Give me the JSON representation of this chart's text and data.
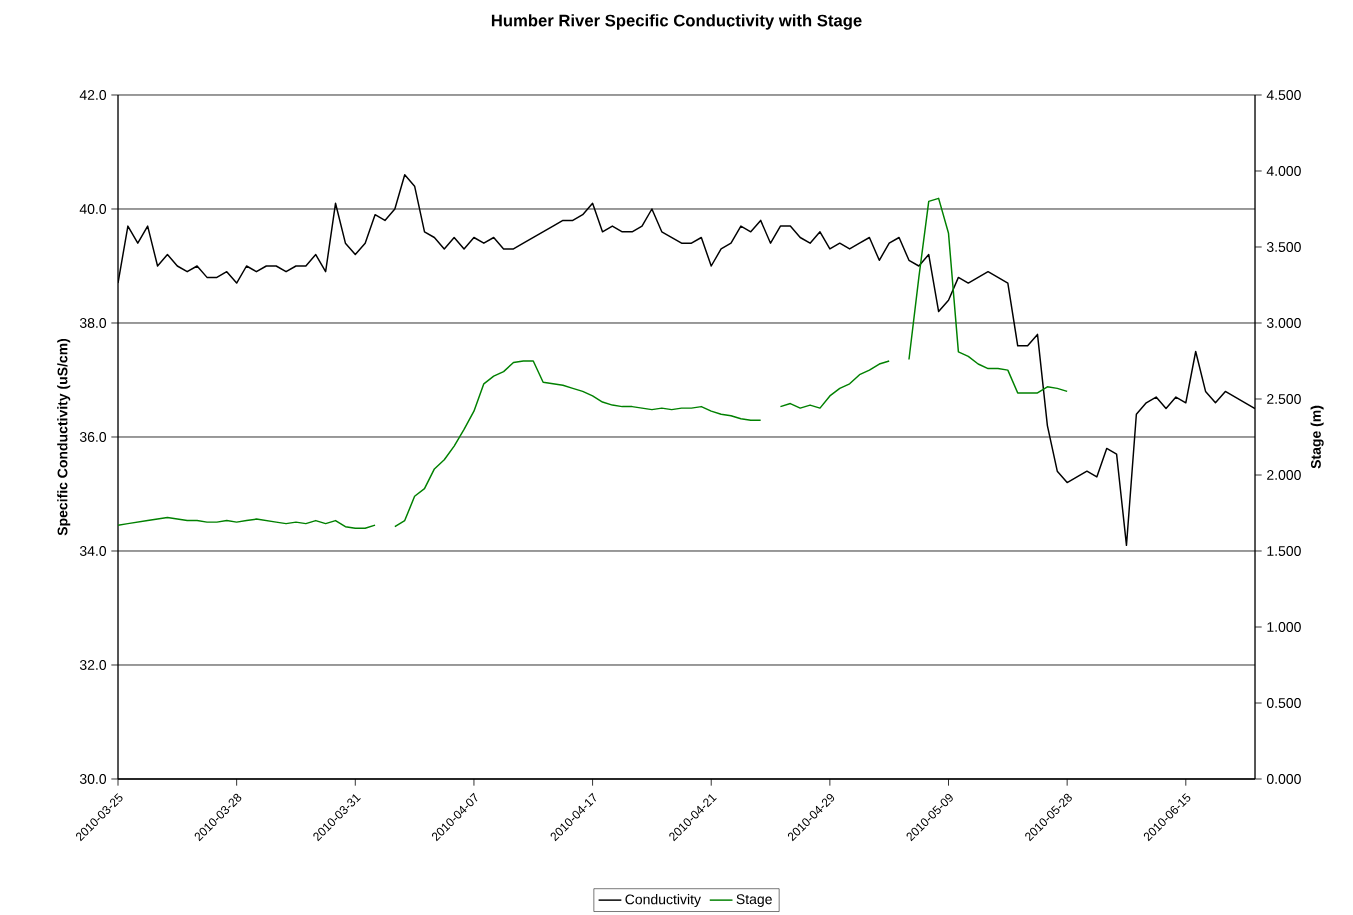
{
  "chart_data": {
    "type": "line",
    "title": "Humber River Specific Conductivity with Stage",
    "ylabel": "Specific Conductivity (uS/cm)",
    "y2label": "Stage (m)",
    "categories": [
      "2010-03-25",
      null,
      null,
      null,
      null,
      null,
      null,
      null,
      null,
      null,
      null,
      null,
      "2010-03-28",
      null,
      null,
      null,
      null,
      null,
      null,
      null,
      null,
      null,
      null,
      null,
      "2010-03-31",
      null,
      null,
      null,
      null,
      null,
      null,
      null,
      null,
      null,
      null,
      null,
      "2010-04-07",
      null,
      null,
      null,
      null,
      null,
      null,
      null,
      null,
      null,
      null,
      null,
      "2010-04-17",
      null,
      null,
      null,
      null,
      null,
      null,
      null,
      null,
      null,
      null,
      null,
      "2010-04-21",
      null,
      null,
      null,
      null,
      null,
      null,
      null,
      null,
      null,
      null,
      null,
      "2010-04-29",
      null,
      null,
      null,
      null,
      null,
      null,
      null,
      null,
      null,
      null,
      null,
      "2010-05-09",
      null,
      null,
      null,
      null,
      null,
      null,
      null,
      null,
      null,
      null,
      null,
      "2010-05-28",
      null,
      null,
      null,
      null,
      null,
      null,
      null,
      null,
      null,
      null,
      null,
      "2010-06-15",
      null,
      null,
      null,
      null,
      null,
      null,
      null
    ],
    "series": [
      {
        "name": "Conductivity",
        "color": "#000000",
        "axis": "y",
        "values": [
          38.7,
          39.7,
          39.4,
          39.7,
          39.0,
          39.2,
          39.0,
          38.9,
          39.0,
          38.8,
          38.8,
          38.9,
          38.7,
          39.0,
          38.9,
          39.0,
          39.0,
          38.9,
          39.0,
          39.0,
          39.2,
          38.9,
          40.1,
          39.4,
          39.2,
          39.4,
          39.9,
          39.8,
          40.0,
          40.6,
          40.4,
          39.6,
          39.5,
          39.3,
          39.5,
          39.3,
          39.5,
          39.4,
          39.5,
          39.3,
          39.3,
          39.4,
          39.5,
          39.6,
          39.7,
          39.8,
          39.8,
          39.9,
          40.1,
          39.6,
          39.7,
          39.6,
          39.6,
          39.7,
          40.0,
          39.6,
          39.5,
          39.4,
          39.4,
          39.5,
          39.0,
          39.3,
          39.4,
          39.7,
          39.6,
          39.8,
          39.4,
          39.7,
          39.7,
          39.5,
          39.4,
          39.6,
          39.3,
          39.4,
          39.3,
          39.4,
          39.5,
          39.1,
          39.4,
          39.5,
          39.1,
          39.0,
          39.2,
          38.2,
          38.4,
          38.8,
          38.7,
          38.8,
          38.9,
          38.8,
          38.7,
          37.6,
          37.6,
          37.8,
          36.2,
          35.4,
          35.2,
          35.3,
          35.4,
          35.3,
          35.8,
          35.7,
          34.1,
          36.4,
          36.6,
          36.7,
          36.5,
          36.7,
          36.6,
          37.5,
          36.8,
          36.6,
          36.8,
          36.7,
          36.6,
          36.5
        ]
      },
      {
        "name": "Stage",
        "color": "#008000",
        "axis": "y2",
        "values": [
          1.67,
          1.68,
          1.69,
          1.7,
          1.71,
          1.72,
          1.71,
          1.7,
          1.7,
          1.69,
          1.69,
          1.7,
          1.69,
          1.7,
          1.71,
          1.7,
          1.69,
          1.68,
          1.69,
          1.68,
          1.7,
          1.68,
          1.7,
          1.66,
          1.65,
          1.65,
          1.67,
          null,
          1.66,
          1.7,
          1.86,
          1.91,
          2.04,
          2.1,
          2.19,
          2.3,
          2.42,
          2.6,
          2.65,
          2.68,
          2.74,
          2.75,
          2.75,
          2.61,
          2.6,
          2.59,
          2.57,
          2.55,
          2.52,
          2.48,
          2.46,
          2.45,
          2.45,
          2.44,
          2.43,
          2.44,
          2.43,
          2.44,
          2.44,
          2.45,
          2.42,
          2.4,
          2.39,
          2.37,
          2.36,
          2.36,
          null,
          2.45,
          2.47,
          2.44,
          2.46,
          2.44,
          2.52,
          2.57,
          2.6,
          2.66,
          2.69,
          2.73,
          2.75,
          null,
          2.76,
          3.3,
          3.8,
          3.82,
          3.59,
          2.81,
          2.78,
          2.73,
          2.7,
          2.7,
          2.69,
          2.54,
          2.54,
          2.54,
          2.58,
          2.57,
          2.55,
          null,
          null,
          null,
          null,
          null,
          null,
          null,
          null,
          null,
          null,
          null,
          null,
          null,
          null,
          null,
          null,
          null,
          null,
          null
        ]
      }
    ],
    "ylim": [
      30,
      42
    ],
    "yticks": [
      {
        "value": 30,
        "label": "30.0"
      },
      {
        "value": 32,
        "label": "32.0"
      },
      {
        "value": 34,
        "label": "34.0"
      },
      {
        "value": 36,
        "label": "36.0"
      },
      {
        "value": 38,
        "label": "38.0"
      },
      {
        "value": 40,
        "label": "40.0"
      },
      {
        "value": 42,
        "label": "42.0"
      }
    ],
    "y2lim": [
      0,
      4.5
    ],
    "y2ticks": [
      {
        "value": 0,
        "label": "0.000"
      },
      {
        "value": 0.5,
        "label": "0.500"
      },
      {
        "value": 1,
        "label": "1.000"
      },
      {
        "value": 1.5,
        "label": "1.500"
      },
      {
        "value": 2,
        "label": "2.000"
      },
      {
        "value": 2.5,
        "label": "2.500"
      },
      {
        "value": 3,
        "label": "3.000"
      },
      {
        "value": 3.5,
        "label": "3.500"
      },
      {
        "value": 4,
        "label": "4.000"
      },
      {
        "value": 4.5,
        "label": "4.500"
      }
    ],
    "grid": "y",
    "legend": "bottom"
  }
}
